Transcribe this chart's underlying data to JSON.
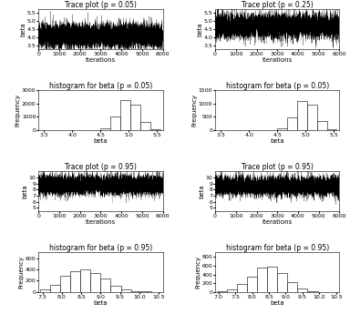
{
  "titles": [
    "Trace plot (p = 0.05)",
    "Trace plot (p = 0.25)",
    "histogram for beta (p = 0.05)",
    "histogram for beta (p = 0.05)",
    "Trace plot (p = 0.95)",
    "Trace plot (p = 0.95)",
    "histogram for beta (p = 0.95)",
    "histogram for beta (p = 0.95)"
  ],
  "trace1_ylim": [
    3.3,
    5.7
  ],
  "trace1_yticks": [
    3.5,
    4.0,
    4.5,
    5.0,
    5.5
  ],
  "trace2_ylim": [
    3.3,
    5.7
  ],
  "trace2_yticks": [
    3.5,
    4.0,
    4.5,
    5.0,
    5.5
  ],
  "trace3_ylim": [
    4.5,
    11.0
  ],
  "trace3_yticks": [
    5,
    6,
    7,
    8,
    9,
    10
  ],
  "trace4_ylim": [
    4.5,
    11.0
  ],
  "trace4_yticks": [
    5,
    6,
    7,
    8,
    9,
    10
  ],
  "hist1_xlim": [
    3.4,
    5.6
  ],
  "hist1_xticks": [
    3.5,
    4.0,
    4.5,
    5.0,
    5.5
  ],
  "hist1_ylim": [
    0,
    3000
  ],
  "hist1_yticks": [
    0,
    1000,
    2000,
    3000
  ],
  "hist2_xlim": [
    3.4,
    5.6
  ],
  "hist2_xticks": [
    3.5,
    4.0,
    4.5,
    5.0,
    5.5
  ],
  "hist2_ylim": [
    0,
    1500
  ],
  "hist2_yticks": [
    0,
    500,
    1000,
    1500
  ],
  "hist3_xlim": [
    7.4,
    10.6
  ],
  "hist3_xticks": [
    7.5,
    8.0,
    8.5,
    9.0,
    9.5,
    10.0,
    10.5
  ],
  "hist3_ylim": [
    0,
    700
  ],
  "hist3_yticks": [
    0,
    200,
    400,
    600
  ],
  "hist4_xlim": [
    6.9,
    10.6
  ],
  "hist4_xticks": [
    7.0,
    7.5,
    8.0,
    8.5,
    9.0,
    9.5,
    10.0,
    10.5
  ],
  "hist4_ylim": [
    0,
    900
  ],
  "hist4_yticks": [
    0,
    200,
    400,
    600,
    800
  ],
  "iter_xlim": [
    0,
    6000
  ],
  "iter_xticks": [
    0,
    1000,
    2000,
    3000,
    4000,
    5000,
    6000
  ],
  "n_iter": 6000,
  "trace1_mean": 4.1,
  "trace1_std": 0.38,
  "trace2_mean": 4.7,
  "trace2_std": 0.38,
  "trace3_mean": 8.8,
  "trace3_std": 0.85,
  "trace4_mean": 8.6,
  "trace4_std": 0.85,
  "hist1_mean": 5.0,
  "hist1_std": 0.17,
  "hist2_mean": 5.0,
  "hist2_std": 0.17,
  "hist3_mean": 8.6,
  "hist3_std": 0.5,
  "hist4_mean": 8.5,
  "hist4_std": 0.5,
  "bg_color": "#ffffff",
  "line_color": "#000000",
  "bar_color": "#ffffff",
  "bar_edge_color": "#000000",
  "title_fontsize": 5.5,
  "label_fontsize": 5.0,
  "tick_fontsize": 4.5
}
